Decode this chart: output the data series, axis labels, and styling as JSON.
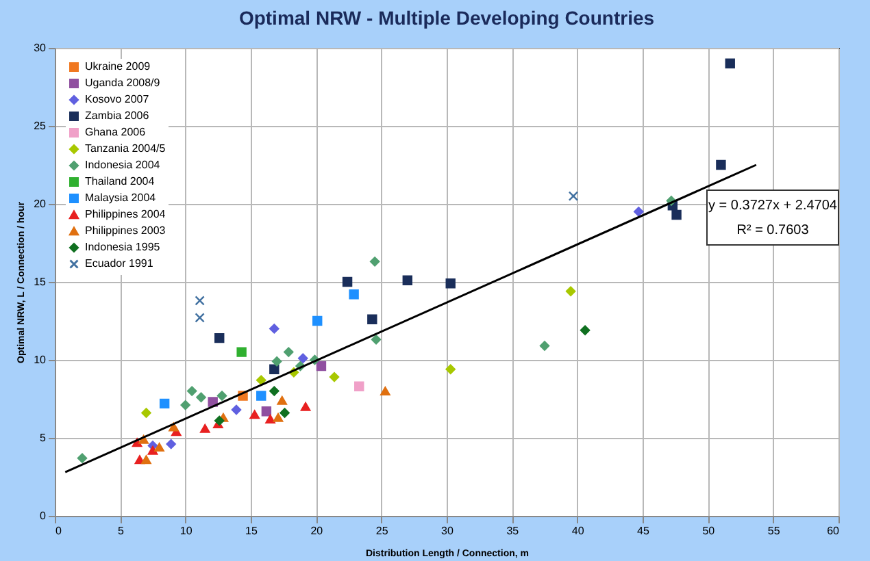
{
  "chart_data": {
    "type": "scatter",
    "title": "Optimal NRW - Multiple Developing Countries",
    "xlabel": "Distribution Length / Connection, m",
    "ylabel": "Optimal NRW, L / Connection / hour",
    "xlim": [
      0,
      60
    ],
    "ylim": [
      0,
      30
    ],
    "xticks": [
      0,
      5,
      10,
      15,
      20,
      25,
      30,
      35,
      40,
      45,
      50,
      55,
      60
    ],
    "yticks": [
      0,
      5,
      10,
      15,
      20,
      25,
      30
    ],
    "grid": true,
    "legend": "top left",
    "annotations": [
      "y = 0.3727x + 2.4704",
      "R² = 0.7603"
    ],
    "series": [
      {
        "name": "Ukraine 2009",
        "color": "#f07820",
        "marker": "square",
        "x": [
          14.4
        ],
        "values": [
          7.7
        ]
      },
      {
        "name": "Uganda 2008/9",
        "color": "#9050a0",
        "marker": "square",
        "x": [
          12.1,
          16.2,
          20.4
        ],
        "values": [
          7.3,
          6.7,
          9.6
        ]
      },
      {
        "name": "Kosovo 2007",
        "color": "#6060e0",
        "marker": "diamond",
        "x": [
          7.5,
          8.9,
          13.9,
          16.8,
          19.0,
          44.7
        ],
        "values": [
          4.5,
          4.6,
          6.8,
          12.0,
          10.1,
          19.5
        ]
      },
      {
        "name": "Zambia 2006",
        "color": "#1a2e5a",
        "marker": "square",
        "x": [
          12.6,
          16.8,
          22.4,
          24.3,
          27.0,
          30.3,
          47.3,
          47.6,
          51.0,
          51.7
        ],
        "values": [
          11.4,
          9.4,
          15.0,
          12.6,
          15.1,
          14.9,
          19.9,
          19.3,
          22.5,
          29.0
        ]
      },
      {
        "name": "Ghana 2006",
        "color": "#f0a0c8",
        "marker": "square",
        "x": [
          23.3
        ],
        "values": [
          8.3
        ]
      },
      {
        "name": "Tanzania 2004/5",
        "color": "#a8c800",
        "marker": "diamond",
        "x": [
          7.0,
          15.8,
          18.3,
          21.4,
          30.3,
          39.5
        ],
        "values": [
          6.6,
          8.7,
          9.2,
          8.9,
          9.4,
          14.4
        ]
      },
      {
        "name": "Indonesia 2004",
        "color": "#50a070",
        "marker": "diamond",
        "x": [
          2.1,
          10.0,
          10.5,
          11.2,
          12.8,
          17.0,
          17.9,
          18.8,
          19.9,
          24.5,
          24.6,
          37.5,
          47.2
        ],
        "values": [
          3.7,
          7.1,
          8.0,
          7.6,
          7.7,
          9.9,
          10.5,
          9.6,
          10.0,
          16.3,
          11.3,
          10.9,
          20.2
        ]
      },
      {
        "name": "Thailand 2004",
        "color": "#30b030",
        "marker": "square",
        "x": [
          14.3
        ],
        "values": [
          10.5
        ]
      },
      {
        "name": "Malaysia 2004",
        "color": "#1e90ff",
        "marker": "square",
        "x": [
          8.4,
          15.8,
          20.1,
          22.9
        ],
        "values": [
          7.2,
          7.7,
          12.5,
          14.2
        ]
      },
      {
        "name": "Philippines 2004",
        "color": "#e82020",
        "marker": "triangle",
        "x": [
          6.3,
          6.5,
          7.5,
          9.3,
          11.5,
          12.5,
          15.3,
          16.5,
          19.2
        ],
        "values": [
          4.7,
          3.6,
          4.2,
          5.4,
          5.6,
          5.9,
          6.5,
          6.2,
          7.0
        ]
      },
      {
        "name": "Philippines 2003",
        "color": "#e07010",
        "marker": "triangle",
        "x": [
          6.8,
          7.0,
          8.0,
          9.1,
          12.9,
          17.1,
          17.4,
          25.3
        ],
        "values": [
          4.9,
          3.6,
          4.4,
          5.7,
          6.3,
          6.3,
          7.4,
          8.0
        ]
      },
      {
        "name": "Indonesia 1995",
        "color": "#107020",
        "marker": "diamond",
        "x": [
          12.6,
          16.8,
          17.6,
          40.6
        ],
        "values": [
          6.1,
          8.0,
          6.6,
          11.9
        ]
      },
      {
        "name": "Ecuador 1991",
        "color": "#4070a0",
        "marker": "cross",
        "x": [
          11.1,
          11.1,
          39.7
        ],
        "values": [
          13.8,
          12.7,
          20.5
        ]
      },
      {
        "type": "line",
        "color": "#000000",
        "marker": "none",
        "x": [
          0.8,
          53.7
        ],
        "values": [
          2.8,
          22.5
        ]
      }
    ]
  }
}
